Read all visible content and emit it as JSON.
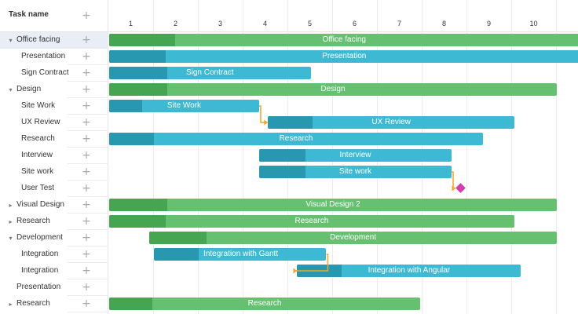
{
  "grid": {
    "header_title": "Task name",
    "rows": [
      {
        "name": "Office facing",
        "caret": "down",
        "indent": 1,
        "selected": true
      },
      {
        "name": "Presentation",
        "caret": "",
        "indent": 2
      },
      {
        "name": "Sign Contract",
        "caret": "",
        "indent": 2
      },
      {
        "name": "Design",
        "caret": "down",
        "indent": 1
      },
      {
        "name": "Site Work",
        "caret": "",
        "indent": 2
      },
      {
        "name": "UX Review",
        "caret": "",
        "indent": 2
      },
      {
        "name": "Research",
        "caret": "",
        "indent": 2
      },
      {
        "name": "Interview",
        "caret": "",
        "indent": 2
      },
      {
        "name": "Site work",
        "caret": "",
        "indent": 2
      },
      {
        "name": "User Test",
        "caret": "",
        "indent": 2
      },
      {
        "name": "Visual Design",
        "caret": "right",
        "indent": 1
      },
      {
        "name": "Research",
        "caret": "right",
        "indent": 1
      },
      {
        "name": "Development",
        "caret": "down",
        "indent": 1
      },
      {
        "name": "Integration",
        "caret": "",
        "indent": 2
      },
      {
        "name": "Integration",
        "caret": "",
        "indent": 2
      },
      {
        "name": "Presentation",
        "caret": "",
        "indent": 1
      },
      {
        "name": "Research",
        "caret": "right",
        "indent": 1
      }
    ]
  },
  "timescale": {
    "days": [
      "1",
      "2",
      "3",
      "4",
      "5",
      "6",
      "7",
      "8",
      "9",
      "10"
    ]
  },
  "colors": {
    "project_bar": "#65c16f",
    "project_progress": "#45a550",
    "task_bar": "#3db9d3",
    "task_progress": "#2898b0",
    "milestone": "#d33daf",
    "link": "#f0a431",
    "selected_row": "#e8edf6"
  },
  "tasks": [
    {
      "row": 0,
      "type": "project",
      "label": "Office facing",
      "start_day": 1,
      "duration_days": 10.5,
      "progress": 0.14
    },
    {
      "row": 1,
      "type": "task",
      "label": "Presentation",
      "start_day": 1,
      "duration_days": 10.5,
      "progress": 0.12
    },
    {
      "row": 2,
      "type": "task",
      "label": "Sign Contract",
      "start_day": 1,
      "duration_days": 4.5,
      "progress": 0.29
    },
    {
      "row": 3,
      "type": "project",
      "label": "Design",
      "start_day": 1,
      "duration_days": 10,
      "progress": 0.13
    },
    {
      "row": 4,
      "type": "task",
      "label": "Site Work",
      "start_day": 1,
      "duration_days": 3.35,
      "progress": 0.22
    },
    {
      "row": 5,
      "type": "task",
      "label": "UX Review",
      "start_day": 4.55,
      "duration_days": 5.5,
      "progress": 0.18
    },
    {
      "row": 6,
      "type": "task",
      "label": "Research",
      "start_day": 1,
      "duration_days": 8.35,
      "progress": 0.12
    },
    {
      "row": 7,
      "type": "task",
      "label": "Interview",
      "start_day": 4.35,
      "duration_days": 4.3,
      "progress": 0.24
    },
    {
      "row": 8,
      "type": "task",
      "label": "Site work",
      "start_day": 4.35,
      "duration_days": 4.3,
      "progress": 0.24
    },
    {
      "row": 9,
      "type": "milestone",
      "label": "",
      "start_day": 8.85
    },
    {
      "row": 10,
      "type": "project",
      "label": "Visual Design 2",
      "start_day": 1,
      "duration_days": 10,
      "progress": 0.13
    },
    {
      "row": 11,
      "type": "project",
      "label": "Research",
      "start_day": 1,
      "duration_days": 9.05,
      "progress": 0.14
    },
    {
      "row": 12,
      "type": "project",
      "label": "Development",
      "start_day": 1.9,
      "duration_days": 9.1,
      "progress": 0.14
    },
    {
      "row": 13,
      "type": "task",
      "label": "Integration with Gantt",
      "start_day": 2,
      "duration_days": 3.85,
      "progress": 0.26
    },
    {
      "row": 14,
      "type": "task",
      "label": "Integration with Angular",
      "start_day": 5.2,
      "duration_days": 5,
      "progress": 0.2
    },
    {
      "row": 16,
      "type": "project",
      "label": "Research",
      "start_day": 1,
      "duration_days": 6.95,
      "progress": 0.14
    }
  ],
  "links": [
    {
      "from_row": 4,
      "to_row": 5
    },
    {
      "from_row": 8,
      "to_row": 9
    },
    {
      "from_row": 13,
      "to_row": 14
    }
  ]
}
